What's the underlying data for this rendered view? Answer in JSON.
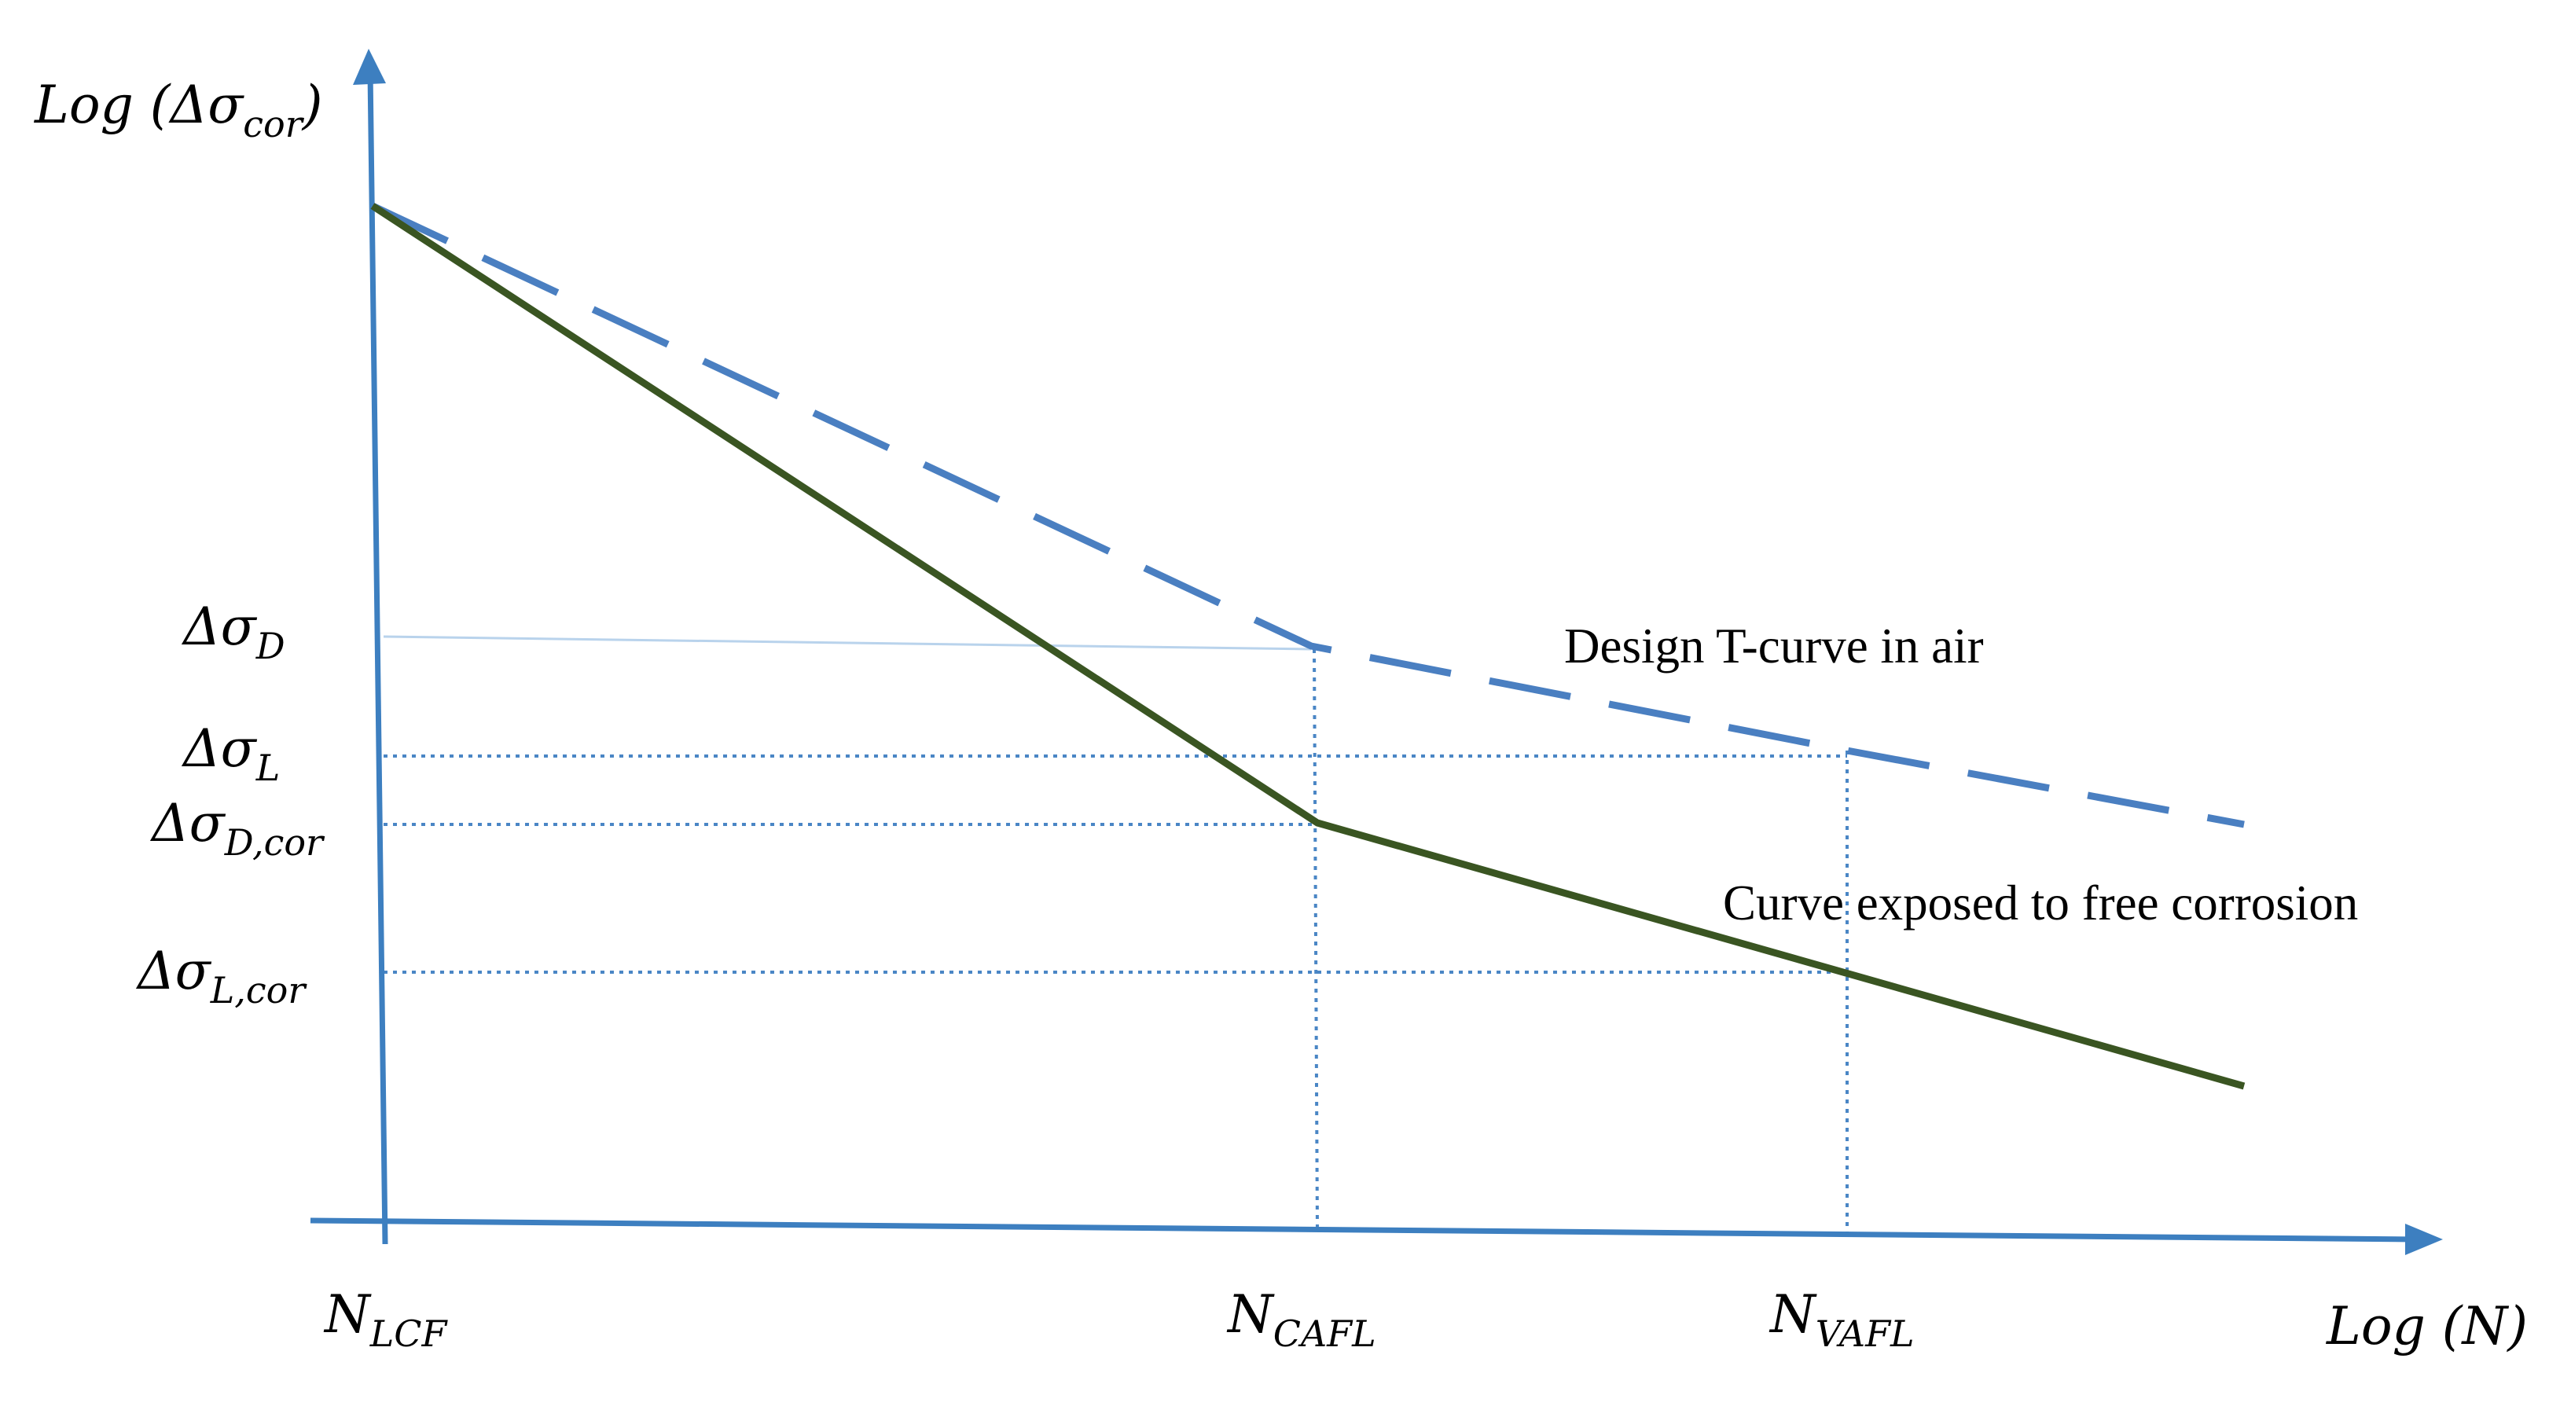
{
  "axes": {
    "y_label": {
      "main": "Log (Δσ",
      "sub": "cor",
      "close": ")"
    },
    "x_label": "Log (N)",
    "color": "#3d7fc0"
  },
  "y_ticks": [
    {
      "main": "Δσ",
      "sub": "D"
    },
    {
      "main": "Δσ",
      "sub": "L"
    },
    {
      "main": "Δσ",
      "sub": "D,cor"
    },
    {
      "main": "Δσ",
      "sub": "L,cor"
    }
  ],
  "x_ticks": [
    {
      "main": "N",
      "sub": "LCF"
    },
    {
      "main": "N",
      "sub": "CAFL"
    },
    {
      "main": "N",
      "sub": "VAFL"
    }
  ],
  "curves": [
    {
      "label": "Design T-curve in air",
      "style": "dashed",
      "color": "#4a7fc1"
    },
    {
      "label": "Curve exposed to free corrosion",
      "style": "solid",
      "color": "#3a5522"
    }
  ],
  "guide_color": "#4a86c5"
}
